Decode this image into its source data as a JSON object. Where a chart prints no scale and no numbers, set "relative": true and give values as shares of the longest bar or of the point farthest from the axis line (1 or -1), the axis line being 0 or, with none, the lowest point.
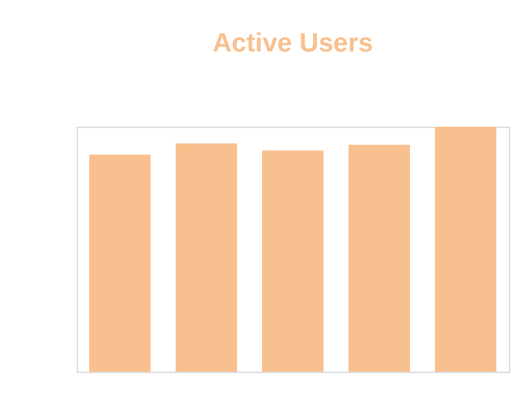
{
  "chart_data": {
    "type": "bar",
    "title": "Active Users",
    "relative": true,
    "categories": [
      null,
      null,
      null,
      null,
      null
    ],
    "values": [
      0.886,
      0.932,
      0.903,
      0.926,
      1.0
    ],
    "color": "#f9c08f"
  }
}
